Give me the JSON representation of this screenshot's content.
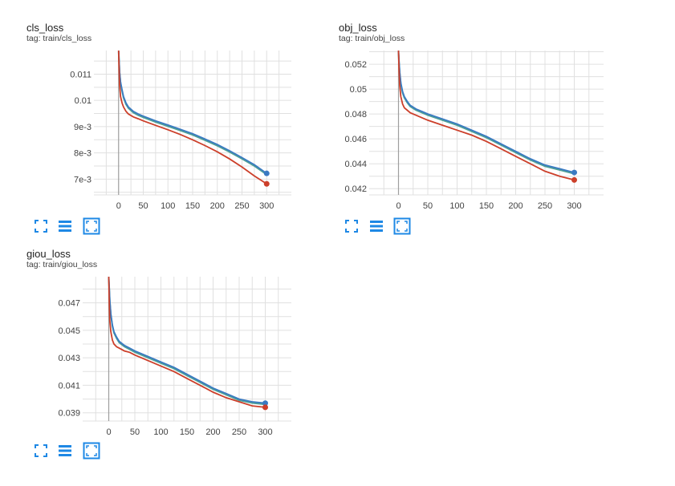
{
  "colors": {
    "blue": "#3a7ac2",
    "red": "#cc3f2a",
    "teal": "#2f8f84",
    "grid": "#e0e0e0",
    "axis": "#9e9e9e",
    "icon": "#1e88e5"
  },
  "icons": {
    "fullscreen": "fullscreen-icon",
    "data": "data-table-icon",
    "fit": "fit-domain-icon"
  },
  "chart_data": [
    {
      "type": "line",
      "title": "cls_loss",
      "tag": "tag: train/cls_loss",
      "xlabel": "",
      "ylabel": "",
      "xlim": [
        -50,
        350
      ],
      "ylim": [
        0.0064,
        0.0119
      ],
      "xticks": [
        0,
        50,
        100,
        150,
        200,
        250,
        300
      ],
      "yticks": [
        0.007,
        0.008,
        0.009,
        0.01,
        0.011
      ],
      "ytick_labels": [
        "7e-3",
        "8e-3",
        "9e-3",
        "0.01",
        "0.011"
      ],
      "series": [
        {
          "name": "run_blue",
          "color": "#3a7ac2",
          "x": [
            0,
            1,
            2,
            4,
            7,
            10,
            15,
            20,
            30,
            40,
            50,
            75,
            100,
            125,
            150,
            175,
            200,
            225,
            250,
            275,
            300
          ],
          "y": [
            0.0119,
            0.0115,
            0.0111,
            0.0107,
            0.0104,
            0.01015,
            0.0099,
            0.00975,
            0.00958,
            0.00948,
            0.0094,
            0.00922,
            0.00906,
            0.0089,
            0.00873,
            0.00853,
            0.00832,
            0.00808,
            0.00782,
            0.00755,
            0.00722
          ]
        },
        {
          "name": "run_red",
          "color": "#cc3f2a",
          "x": [
            0,
            1,
            2,
            4,
            7,
            10,
            15,
            20,
            30,
            40,
            50,
            75,
            100,
            125,
            150,
            175,
            200,
            225,
            250,
            275,
            300
          ],
          "y": [
            0.0119,
            0.0112,
            0.0106,
            0.01015,
            0.0099,
            0.00975,
            0.00958,
            0.00948,
            0.00937,
            0.0093,
            0.00922,
            0.00905,
            0.00888,
            0.0087,
            0.0085,
            0.00828,
            0.00804,
            0.00777,
            0.00746,
            0.00712,
            0.00682
          ]
        }
      ]
    },
    {
      "type": "line",
      "title": "obj_loss",
      "tag": "tag: train/obj_loss",
      "xlabel": "",
      "ylabel": "",
      "xlim": [
        -50,
        350
      ],
      "ylim": [
        0.0415,
        0.0531
      ],
      "xticks": [
        0,
        50,
        100,
        150,
        200,
        250,
        300
      ],
      "yticks": [
        0.042,
        0.044,
        0.046,
        0.048,
        0.05,
        0.052
      ],
      "ytick_labels": [
        "0.042",
        "0.044",
        "0.046",
        "0.048",
        "0.05",
        "0.052"
      ],
      "series": [
        {
          "name": "run_blue",
          "color": "#3a7ac2",
          "x": [
            0,
            1,
            2,
            4,
            7,
            10,
            15,
            20,
            30,
            40,
            50,
            75,
            100,
            125,
            150,
            175,
            200,
            225,
            250,
            275,
            300
          ],
          "y": [
            0.0531,
            0.0522,
            0.0514,
            0.0505,
            0.0498,
            0.0494,
            0.049,
            0.0487,
            0.0484,
            0.0482,
            0.048,
            0.0476,
            0.0472,
            0.0467,
            0.0462,
            0.0456,
            0.045,
            0.0444,
            0.0439,
            0.0436,
            0.0433
          ]
        },
        {
          "name": "run_red",
          "color": "#cc3f2a",
          "x": [
            0,
            1,
            2,
            4,
            7,
            10,
            15,
            20,
            30,
            40,
            50,
            75,
            100,
            125,
            150,
            175,
            200,
            225,
            250,
            275,
            300
          ],
          "y": [
            0.0531,
            0.0515,
            0.0503,
            0.0494,
            0.0488,
            0.0485,
            0.0483,
            0.0481,
            0.0479,
            0.0477,
            0.0475,
            0.0471,
            0.0467,
            0.0463,
            0.0458,
            0.0452,
            0.0446,
            0.044,
            0.0434,
            0.043,
            0.0427
          ]
        }
      ]
    },
    {
      "type": "line",
      "title": "giou_loss",
      "tag": "tag: train/giou_loss",
      "xlabel": "",
      "ylabel": "",
      "xlim": [
        -50,
        350
      ],
      "ylim": [
        0.0384,
        0.0489
      ],
      "xticks": [
        0,
        50,
        100,
        150,
        200,
        250,
        300
      ],
      "yticks": [
        0.039,
        0.041,
        0.043,
        0.045,
        0.047
      ],
      "ytick_labels": [
        "0.039",
        "0.041",
        "0.043",
        "0.045",
        "0.047"
      ],
      "series": [
        {
          "name": "run_blue",
          "color": "#3a7ac2",
          "x": [
            0,
            1,
            2,
            4,
            7,
            10,
            15,
            20,
            30,
            40,
            50,
            75,
            100,
            125,
            150,
            175,
            200,
            225,
            250,
            275,
            300
          ],
          "y": [
            0.0489,
            0.048,
            0.0472,
            0.0462,
            0.0454,
            0.0449,
            0.0445,
            0.0442,
            0.0439,
            0.0437,
            0.0435,
            0.0431,
            0.0427,
            0.0423,
            0.0418,
            0.0413,
            0.0408,
            0.0404,
            0.04,
            0.0398,
            0.0397
          ]
        },
        {
          "name": "run_red",
          "color": "#cc3f2a",
          "x": [
            0,
            1,
            2,
            4,
            7,
            10,
            15,
            20,
            30,
            40,
            50,
            75,
            100,
            125,
            150,
            175,
            200,
            225,
            250,
            275,
            300
          ],
          "y": [
            0.0489,
            0.0468,
            0.0457,
            0.0449,
            0.0443,
            0.044,
            0.0438,
            0.0437,
            0.0435,
            0.0434,
            0.0432,
            0.0428,
            0.0424,
            0.042,
            0.0415,
            0.041,
            0.0405,
            0.0401,
            0.0398,
            0.0395,
            0.0394
          ]
        }
      ]
    }
  ]
}
